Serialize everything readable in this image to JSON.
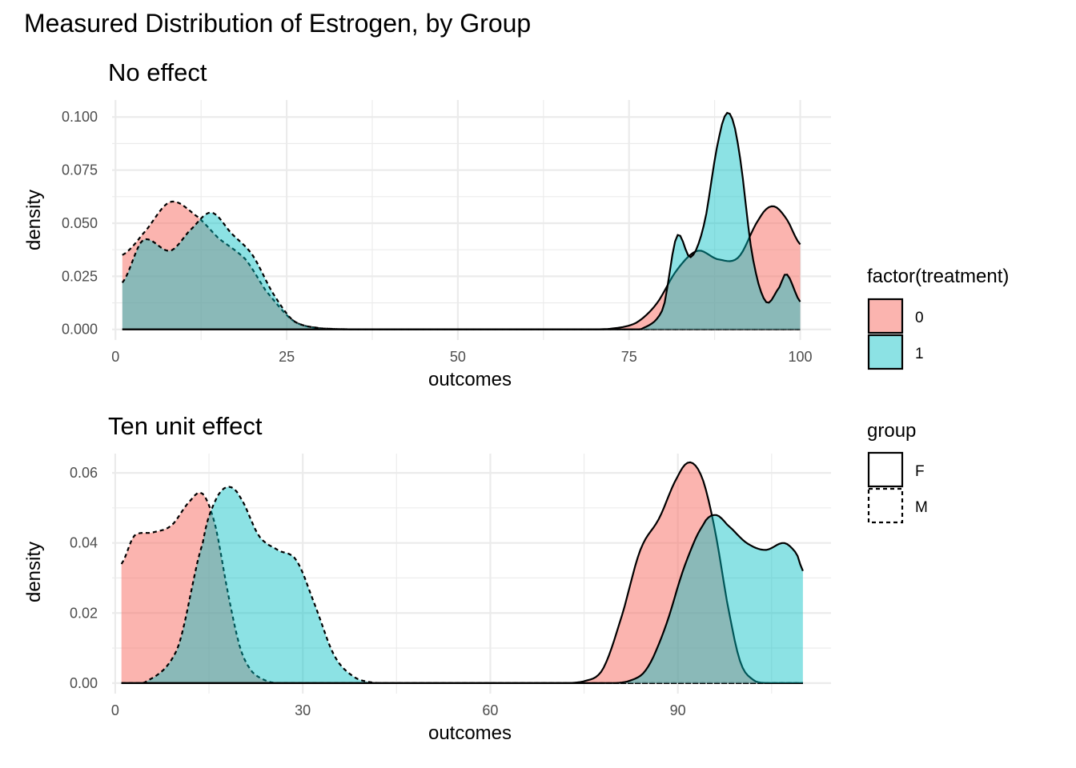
{
  "figure_title": "Measured Distribution of Estrogen, by Group",
  "colors": {
    "treatment_0": "#F8766D",
    "treatment_1": "#00BFC4",
    "outline": "#000000"
  },
  "legend": {
    "fill_title": "factor(treatment)",
    "fill_items": [
      "0",
      "1"
    ],
    "linetype_title": "group",
    "linetype_items": [
      "F",
      "M"
    ]
  },
  "chart_data": [
    {
      "type": "area",
      "title": "No effect",
      "xlabel": "outcomes",
      "ylabel": "density",
      "xlim": [
        -0.5,
        104.5
      ],
      "ylim": [
        -0.005,
        0.108
      ],
      "x_ticks": [
        0,
        25,
        50,
        75,
        100
      ],
      "x_tick_labels": [
        "0",
        "25",
        "50",
        "75",
        "100"
      ],
      "y_ticks": [
        0.0,
        0.025,
        0.05,
        0.075,
        0.1
      ],
      "y_tick_labels": [
        "0.000",
        "0.025",
        "0.050",
        "0.075",
        "0.100"
      ],
      "series": [
        {
          "treatment": "0",
          "group": "M",
          "x": [
            1,
            4,
            8,
            12,
            15,
            19,
            22,
            26,
            30,
            40
          ],
          "y": [
            0.035,
            0.045,
            0.06,
            0.053,
            0.043,
            0.033,
            0.018,
            0.004,
            0.0005,
            0.0
          ]
        },
        {
          "treatment": "1",
          "group": "M",
          "x": [
            1,
            4,
            8,
            11,
            14,
            17,
            20,
            23,
            26,
            30,
            40
          ],
          "y": [
            0.022,
            0.042,
            0.037,
            0.047,
            0.055,
            0.045,
            0.035,
            0.017,
            0.004,
            0.0005,
            0.0
          ]
        },
        {
          "treatment": "0",
          "group": "F",
          "x": [
            60,
            72,
            76,
            79,
            82,
            85,
            88,
            91,
            94,
            96,
            98,
            100
          ],
          "y": [
            0.0,
            0.0002,
            0.003,
            0.012,
            0.028,
            0.037,
            0.033,
            0.034,
            0.052,
            0.058,
            0.052,
            0.04
          ]
        },
        {
          "treatment": "1",
          "group": "F",
          "x": [
            60,
            74,
            77,
            80,
            82,
            84,
            86,
            88,
            89.5,
            91,
            93,
            95,
            97,
            98,
            100
          ],
          "y": [
            0.0,
            0.0,
            0.0005,
            0.01,
            0.044,
            0.034,
            0.05,
            0.088,
            0.102,
            0.085,
            0.035,
            0.013,
            0.02,
            0.026,
            0.013
          ]
        }
      ]
    },
    {
      "type": "area",
      "title": "Ten unit effect",
      "xlabel": "outcomes",
      "ylabel": "density",
      "xlim": [
        -0.5,
        114.5
      ],
      "ylim": [
        -0.003,
        0.0655
      ],
      "x_ticks": [
        0,
        30,
        60,
        90
      ],
      "x_tick_labels": [
        "0",
        "30",
        "60",
        "90"
      ],
      "y_ticks": [
        0.0,
        0.02,
        0.04,
        0.06
      ],
      "y_tick_labels": [
        "0.00",
        "0.02",
        "0.04",
        "0.06"
      ],
      "series": [
        {
          "treatment": "0",
          "group": "M",
          "x": [
            1,
            3,
            6,
            9,
            12,
            14,
            16,
            18,
            20,
            22,
            25,
            30
          ],
          "y": [
            0.034,
            0.042,
            0.043,
            0.045,
            0.052,
            0.054,
            0.045,
            0.026,
            0.01,
            0.003,
            0.0002,
            0.0
          ]
        },
        {
          "treatment": "1",
          "group": "M",
          "x": [
            1,
            5,
            10,
            14,
            16,
            18,
            20,
            23,
            26,
            29,
            32,
            35,
            38,
            41,
            45
          ],
          "y": [
            0.0,
            0.0005,
            0.01,
            0.04,
            0.052,
            0.056,
            0.053,
            0.042,
            0.038,
            0.035,
            0.022,
            0.008,
            0.002,
            0.0002,
            0.0
          ]
        },
        {
          "treatment": "0",
          "group": "F",
          "x": [
            70,
            75,
            78,
            81,
            84,
            87,
            90,
            92,
            94,
            96,
            98,
            100,
            102,
            104
          ],
          "y": [
            0.0,
            0.0005,
            0.004,
            0.019,
            0.038,
            0.047,
            0.059,
            0.063,
            0.058,
            0.043,
            0.022,
            0.006,
            0.001,
            0.0
          ]
        },
        {
          "treatment": "1",
          "group": "F",
          "x": [
            78,
            82,
            85,
            88,
            91,
            94,
            96,
            98,
            101,
            104,
            107,
            109,
            110
          ],
          "y": [
            0.0,
            0.0005,
            0.004,
            0.016,
            0.033,
            0.045,
            0.048,
            0.045,
            0.04,
            0.038,
            0.04,
            0.037,
            0.032
          ]
        }
      ]
    }
  ]
}
